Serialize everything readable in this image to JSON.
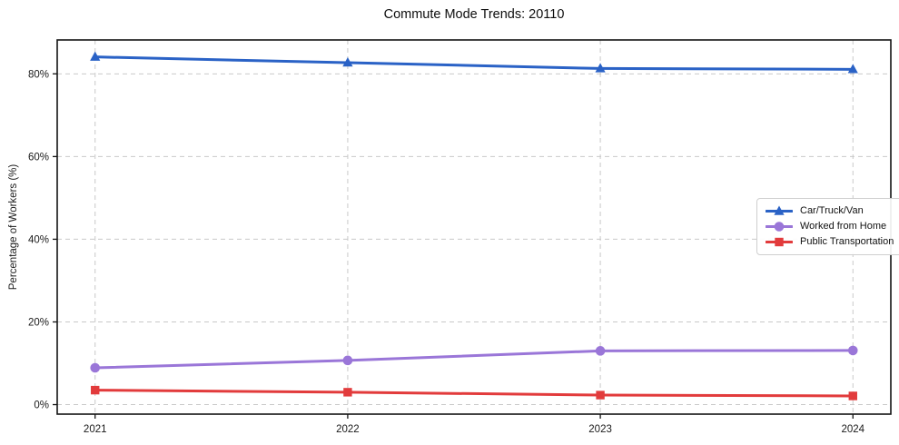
{
  "chart_data": {
    "type": "line",
    "title": "Commute Mode Trends: 20110",
    "xlabel": "",
    "ylabel": "Percentage of Workers (%)",
    "x": [
      2021,
      2022,
      2023,
      2024
    ],
    "x_tick_labels": [
      "2021",
      "2022",
      "2023",
      "2024"
    ],
    "series": [
      {
        "name": "Car/Truck/Van",
        "color": "#2a62c6",
        "marker": "triangle",
        "values": [
          84.1,
          82.7,
          81.3,
          81.1
        ]
      },
      {
        "name": "Worked from Home",
        "color": "#9a76d8",
        "marker": "circle",
        "values": [
          8.9,
          10.7,
          13.0,
          13.1
        ]
      },
      {
        "name": "Public Transportation",
        "color": "#e23b3c",
        "marker": "square",
        "values": [
          3.5,
          3.0,
          2.3,
          2.1
        ]
      }
    ],
    "yticks": [
      0,
      20,
      40,
      60,
      80
    ],
    "ytick_labels": [
      "0%",
      "20%",
      "40%",
      "60%",
      "80%"
    ],
    "ylim": [
      -2.3,
      88.2
    ],
    "xlim": [
      2020.85,
      2024.15
    ],
    "grid": {
      "show": true,
      "style": "dashed",
      "color": "#c9c9c9"
    },
    "legend": {
      "position": "center-right"
    }
  },
  "colors": {
    "spine": "#141414",
    "tick_label": "#1a1a1a",
    "background": "#ffffff"
  }
}
